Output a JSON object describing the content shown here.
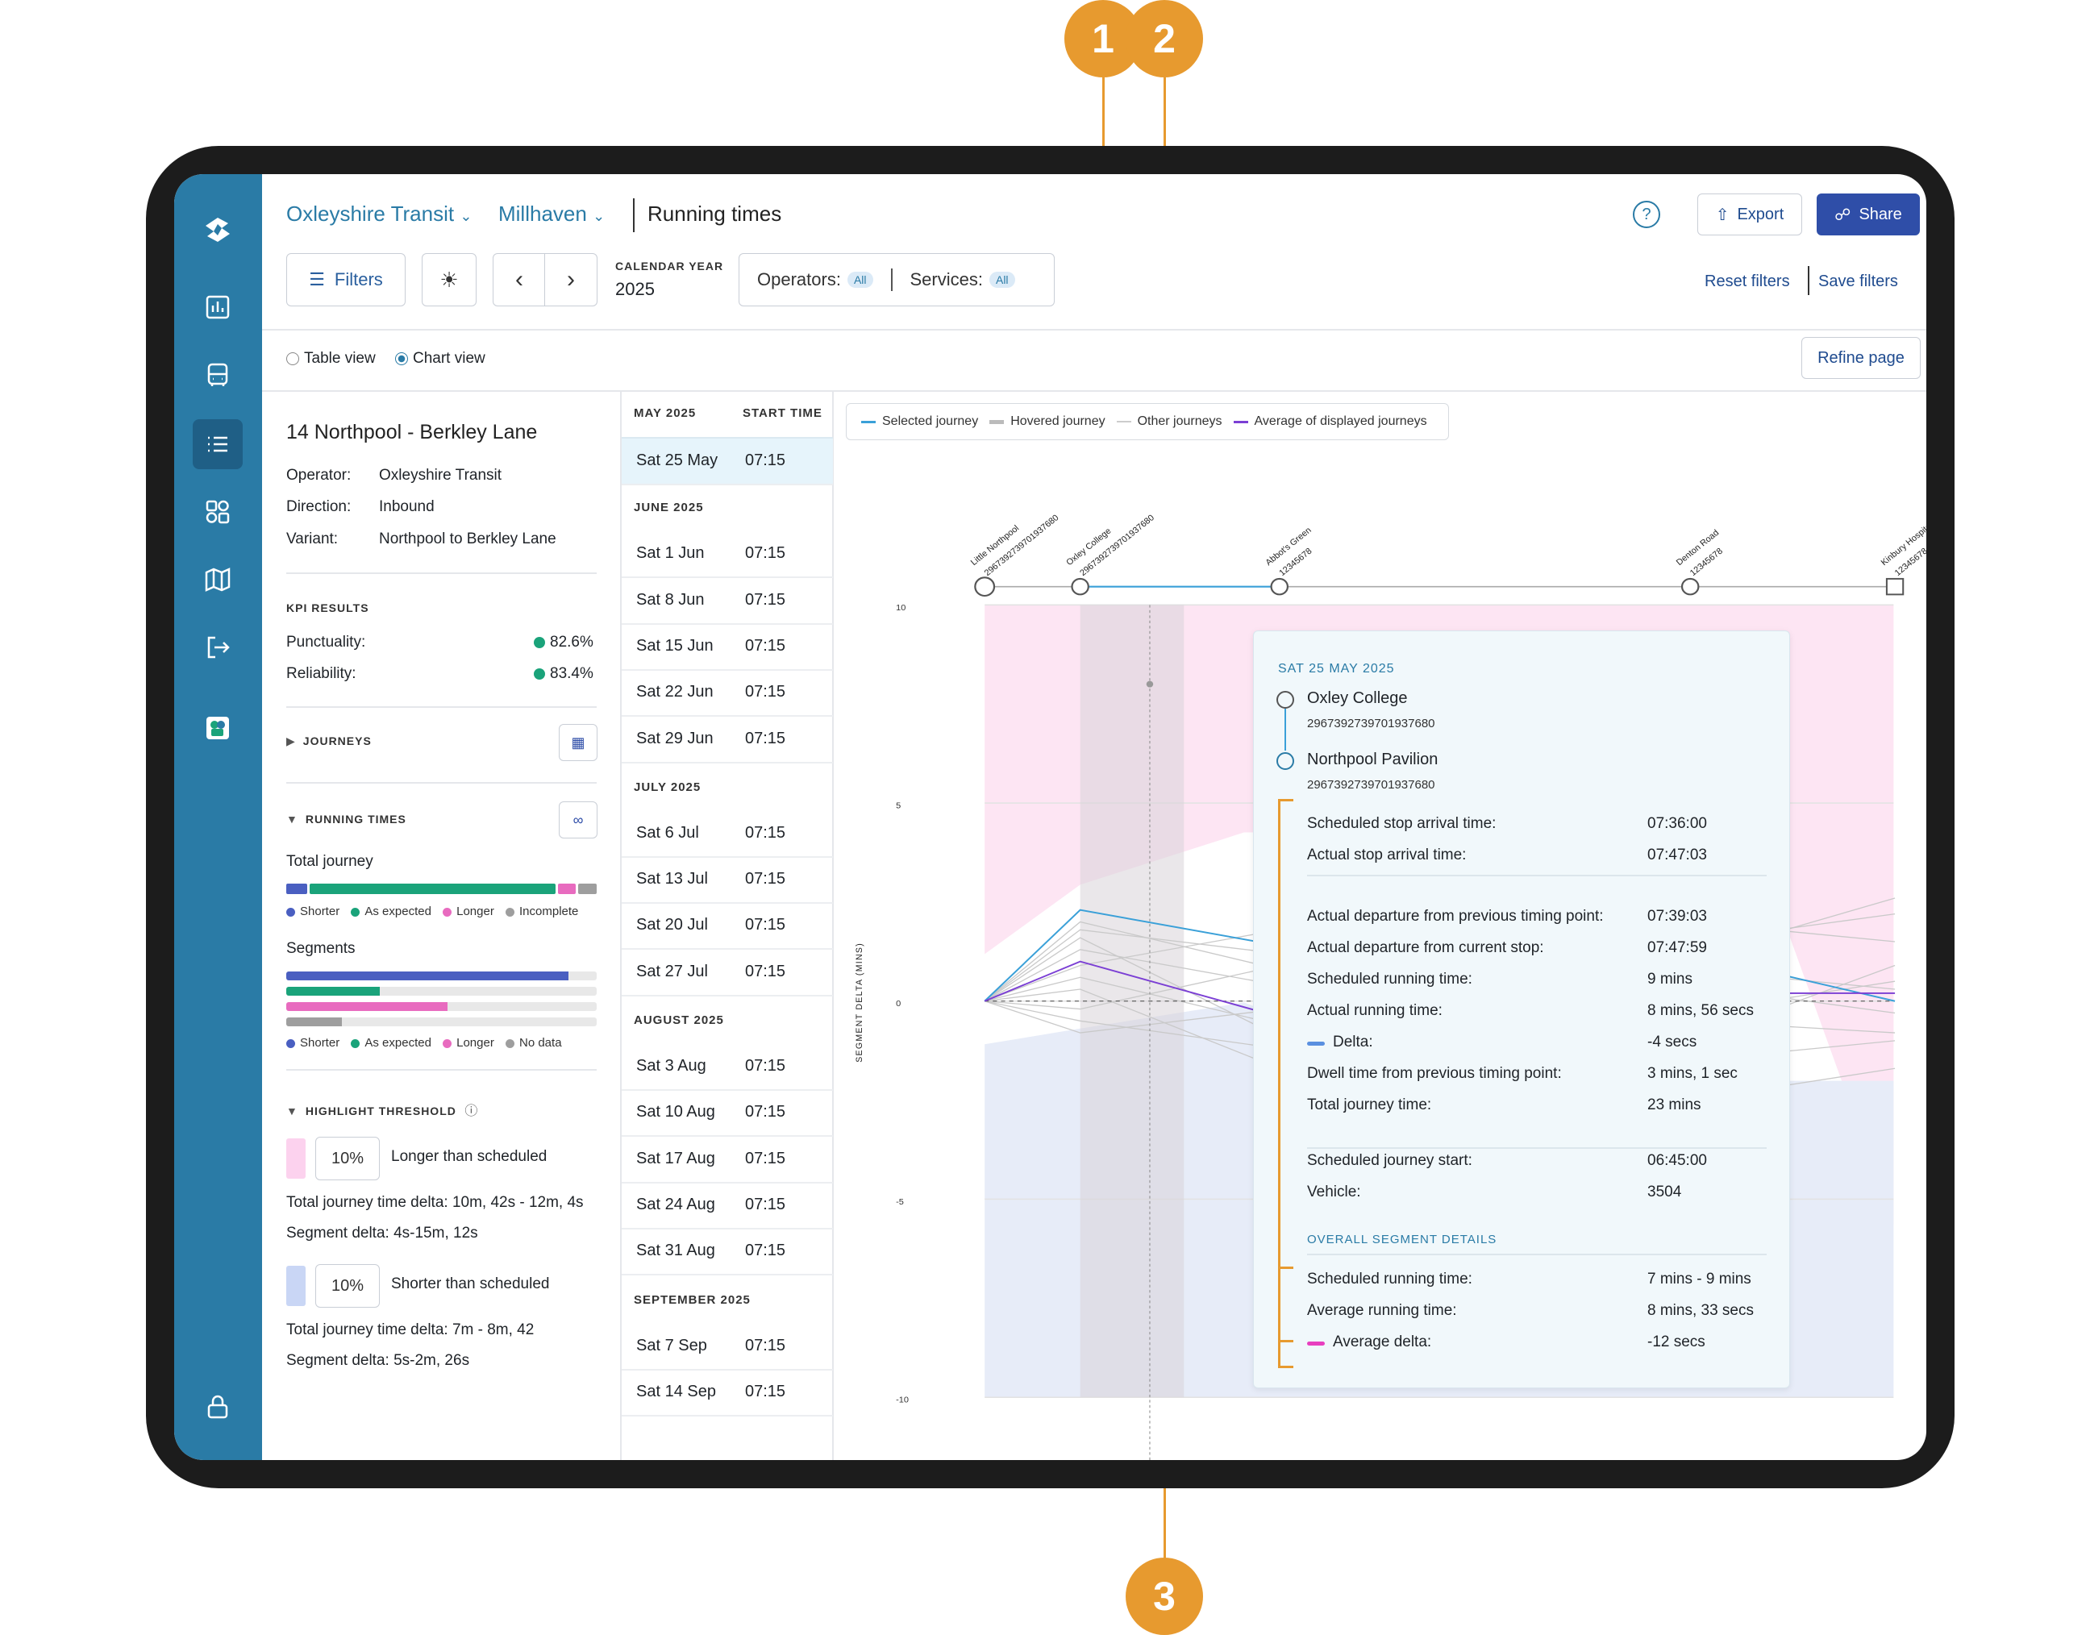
{
  "callouts": [
    "1",
    "2",
    "3"
  ],
  "header": {
    "org": "Oxleyshire Transit",
    "area": "Millhaven",
    "page_title": "Running times",
    "export_label": "Export",
    "share_label": "Share",
    "filters_label": "Filters",
    "calendar_year_label": "CALENDAR YEAR",
    "calendar_year": "2025",
    "operators_label": "Operators:",
    "operators_value": "All",
    "services_label": "Services:",
    "services_value": "All",
    "reset_filters": "Reset filters",
    "save_filters": "Save filters"
  },
  "view": {
    "table_view": "Table view",
    "chart_view": "Chart view",
    "selected": "Chart view",
    "refine_page": "Refine page"
  },
  "route": {
    "title": "14 Northpool - Berkley Lane",
    "operator_label": "Operator:",
    "operator": "Oxleyshire Transit",
    "direction_label": "Direction:",
    "direction": "Inbound",
    "variant_label": "Variant:",
    "variant": "Northpool to Berkley Lane"
  },
  "kpi": {
    "heading": "KPI RESULTS",
    "punctuality_label": "Punctuality:",
    "punctuality": "82.6%",
    "reliability_label": "Reliability:",
    "reliability": "83.4%"
  },
  "sections": {
    "journeys": "JOURNEYS",
    "running_times": "RUNNING TIMES",
    "total_journey": "Total journey",
    "segments": "Segments",
    "highlight_threshold": "HIGHLIGHT THRESHOLD"
  },
  "legend_total": [
    "Shorter",
    "As expected",
    "Longer",
    "Incomplete"
  ],
  "legend_segments": [
    "Shorter",
    "As expected",
    "Longer",
    "No data"
  ],
  "colors": {
    "rail": "#2a7ba6",
    "shorter": "#4a5fc1",
    "as_expected": "#1aa37a",
    "longer": "#e86bbf",
    "nodata": "#9e9e9e",
    "selected": "#3aa0d8",
    "average": "#7b3fd4",
    "pink_band": "#fde5f3",
    "blue_band": "#e7ecf8",
    "callout": "#e79a2f"
  },
  "total_journey_bar": {
    "shorter": 0.07,
    "as_expected": 0.81,
    "longer": 0.06,
    "incomplete": 0.06
  },
  "segments_bars": {
    "shorter": 0.91,
    "as_expected": 0.3,
    "longer": 0.52,
    "nodata": 0.18
  },
  "threshold": {
    "longer_pct": "10%",
    "longer_label": "Longer than scheduled",
    "longer_total": "Total journey time delta:  10m, 42s - 12m, 4s",
    "longer_segment": "Segment delta:  4s-15m, 12s",
    "shorter_pct": "10%",
    "shorter_label": "Shorter than scheduled",
    "shorter_total": "Total journey time delta:  7m - 8m, 42",
    "shorter_segment": "Segment delta:  5s-2m, 26s"
  },
  "journey_list": {
    "start_time_header": "START TIME",
    "groups": [
      {
        "month": "MAY 2025",
        "rows": [
          {
            "date": "Sat 25 May",
            "time": "07:15",
            "selected": true
          }
        ]
      },
      {
        "month": "JUNE 2025",
        "rows": [
          {
            "date": "Sat 1 Jun",
            "time": "07:15"
          },
          {
            "date": "Sat 8 Jun",
            "time": "07:15"
          },
          {
            "date": "Sat 15 Jun",
            "time": "07:15"
          },
          {
            "date": "Sat 22 Jun",
            "time": "07:15"
          },
          {
            "date": "Sat 29 Jun",
            "time": "07:15"
          }
        ]
      },
      {
        "month": "JULY 2025",
        "rows": [
          {
            "date": "Sat 6 Jul",
            "time": "07:15"
          },
          {
            "date": "Sat 13 Jul",
            "time": "07:15"
          },
          {
            "date": "Sat 20 Jul",
            "time": "07:15"
          },
          {
            "date": "Sat 27 Jul",
            "time": "07:15"
          }
        ]
      },
      {
        "month": "AUGUST 2025",
        "rows": [
          {
            "date": "Sat 3 Aug",
            "time": "07:15"
          },
          {
            "date": "Sat 10 Aug",
            "time": "07:15"
          },
          {
            "date": "Sat 17 Aug",
            "time": "07:15"
          },
          {
            "date": "Sat 24 Aug",
            "time": "07:15"
          },
          {
            "date": "Sat 31 Aug",
            "time": "07:15"
          }
        ]
      },
      {
        "month": "SEPTEMBER 2025",
        "rows": [
          {
            "date": "Sat 7 Sep",
            "time": "07:15"
          },
          {
            "date": "Sat 14 Sep",
            "time": "07:15"
          }
        ]
      }
    ]
  },
  "chart_data": {
    "type": "line",
    "ylabel": "SEGMENT DELTA (MINS)",
    "ylim": [
      -10,
      10
    ],
    "yticks": [
      10,
      5,
      0,
      -5,
      -10
    ],
    "legend": [
      "Selected journey",
      "Hovered journey",
      "Other journeys",
      "Average of displayed journeys"
    ],
    "stops": [
      {
        "name": "Little Northpool",
        "code": "2967392739701937680"
      },
      {
        "name": "Oxley College",
        "code": "2967392739701937680"
      },
      {
        "name": "Abbot's Green",
        "code": "12345678"
      },
      {
        "name": "Denton Road",
        "code": "12345678"
      },
      {
        "name": "Kinbury Hospital",
        "code": "12345678"
      }
    ],
    "series": [
      {
        "name": "Selected journey",
        "x": [
          0,
          1,
          2,
          3,
          4
        ],
        "values": [
          0,
          2.3,
          1.4,
          1.2,
          0
        ]
      },
      {
        "name": "Average of displayed journeys",
        "x": [
          0,
          1,
          2,
          3,
          4
        ],
        "values": [
          0,
          1.0,
          -0.4,
          0.2,
          0.2
        ]
      }
    ]
  },
  "tooltip": {
    "date": "SAT 25 MAY 2025",
    "from_stop": "Oxley College",
    "from_code": "2967392739701937680",
    "to_stop": "Northpool Pavilion",
    "to_code": "2967392739701937680",
    "rows_a": [
      {
        "label": "Scheduled stop arrival time:",
        "value": "07:36:00"
      },
      {
        "label": "Actual stop arrival time:",
        "value": "07:47:03"
      }
    ],
    "rows_b": [
      {
        "label": "Actual departure from previous timing point:",
        "value": "07:39:03"
      },
      {
        "label": "Actual departure from current stop:",
        "value": "07:47:59"
      },
      {
        "label": "Scheduled running time:",
        "value": "9 mins"
      },
      {
        "label": "Actual running time:",
        "value": "8 mins, 56 secs"
      },
      {
        "label": "Delta:",
        "value": "-4 secs"
      },
      {
        "label": "Dwell time from previous timing point:",
        "value": "3 mins, 1 sec"
      },
      {
        "label": "Total journey time:",
        "value": "23 mins"
      }
    ],
    "rows_c": [
      {
        "label": "Scheduled journey start:",
        "value": "06:45:00"
      },
      {
        "label": "Vehicle:",
        "value": "3504"
      }
    ],
    "overall_heading": "OVERALL SEGMENT DETAILS",
    "rows_d": [
      {
        "label": "Scheduled running time:",
        "value": "7 mins - 9 mins"
      },
      {
        "label": "Average running time:",
        "value": "8 mins, 33 secs"
      },
      {
        "label": "Average delta:",
        "value": "-12 secs"
      }
    ]
  }
}
